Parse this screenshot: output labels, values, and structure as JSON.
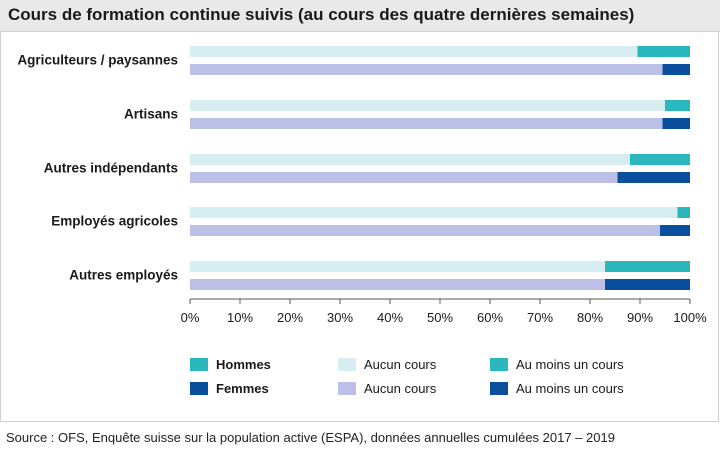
{
  "title": "Cours de formation continue suivis (au cours des quatre dernières semaines)",
  "source": "Source : OFS, Enquête suisse sur la population active (ESPA), données annuelles cumulées 2017 – 2019",
  "colors": {
    "hommes_aucun": "#d6eef0",
    "hommes_au_moins": "#2ab7bd",
    "femmes_aucun": "#bcbfe6",
    "femmes_au_moins": "#0a4f9e",
    "axis": "#555555"
  },
  "chart_data": {
    "type": "bar",
    "orientation": "horizontal",
    "stacked": true,
    "percent_axis": true,
    "title": "Cours de formation continue suivis (au cours des quatre dernières semaines)",
    "categories": [
      "Agriculteurs / paysannes",
      "Artisans",
      "Autres indépendants",
      "Employés agricoles",
      "Autres employés"
    ],
    "groups": [
      {
        "name": "Hommes",
        "segments": [
          {
            "name": "Aucun cours",
            "values": [
              89.5,
              95,
              88,
              97.5,
              83
            ]
          },
          {
            "name": "Au moins un cours",
            "values": [
              10.5,
              5,
              12,
              2.5,
              17
            ]
          }
        ]
      },
      {
        "name": "Femmes",
        "segments": [
          {
            "name": "Aucun cours",
            "values": [
              94.5,
              94.5,
              85.5,
              94,
              83
            ]
          },
          {
            "name": "Au moins un cours",
            "values": [
              5.5,
              5.5,
              14.5,
              6,
              17
            ]
          }
        ]
      }
    ],
    "xlim": [
      0,
      100
    ],
    "x_ticks": [
      "0%",
      "10%",
      "20%",
      "30%",
      "40%",
      "50%",
      "60%",
      "70%",
      "80%",
      "90%",
      "100%"
    ],
    "grid": false,
    "legend": {
      "placement": "bottom",
      "rows": [
        {
          "group": "Hommes",
          "aucun": "Aucun cours",
          "au_moins": "Au moins un cours"
        },
        {
          "group": "Femmes",
          "aucun": "Aucun cours",
          "au_moins": "Au moins un cours"
        }
      ]
    }
  }
}
